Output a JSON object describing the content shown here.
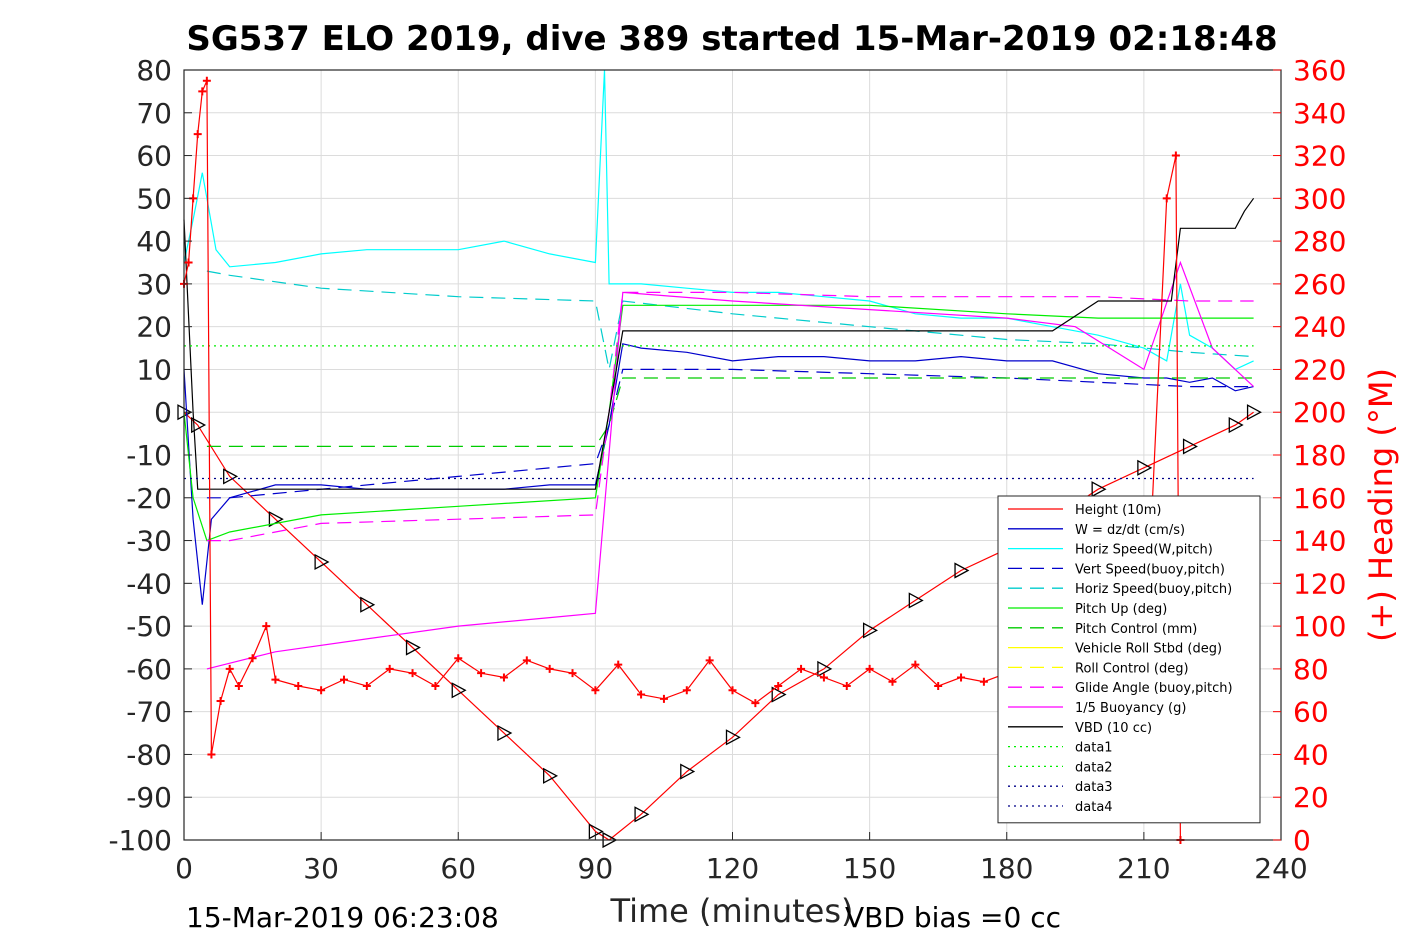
{
  "chart_data": {
    "type": "line",
    "title": "SG537 ELO 2019, dive 389 started 15-Mar-2019 02:18:48",
    "xlabel": "Time (minutes)",
    "ylabel_right": "(+) Heading (°M)",
    "xlim": [
      0,
      240
    ],
    "ylim": [
      -100,
      80
    ],
    "ylim_right": [
      0,
      360
    ],
    "xticks": [
      "0",
      "30",
      "60",
      "90",
      "120",
      "150",
      "180",
      "210",
      "240"
    ],
    "yticks_left": [
      "80",
      "70",
      "60",
      "50",
      "40",
      "30",
      "20",
      "10",
      "0",
      "-10",
      "-20",
      "-30",
      "-40",
      "-50",
      "-60",
      "-70",
      "-80",
      "-90",
      "-100"
    ],
    "yticks_right": [
      "360",
      "340",
      "320",
      "300",
      "280",
      "260",
      "240",
      "220",
      "200",
      "180",
      "160",
      "140",
      "120",
      "100",
      "80",
      "60",
      "40",
      "20",
      "0"
    ],
    "grid": true,
    "legend_position": "bottom-right",
    "footer_left": "15-Mar-2019 06:23:08",
    "footer_right": "VBD bias =0 cc",
    "colors": {
      "height": "#ff0000",
      "w": "#0000cc",
      "horiz_speed_w": "#00ffff",
      "vert_speed_buoy": "#0000cc",
      "horiz_speed_buoy": "#00cccc",
      "pitch_up": "#00ee00",
      "pitch_control": "#00cc00",
      "roll": "#ffff00",
      "roll_control": "#ffff00",
      "glide_angle": "#ff00ff",
      "buoyancy": "#ff00ff",
      "vbd": "#000000",
      "heading": "#ff0000"
    },
    "legend": [
      {
        "label": "Height (10m)",
        "color": "#ff0000",
        "style": "solid"
      },
      {
        "label": "W = dz/dt (cm/s)",
        "color": "#0000cc",
        "style": "solid"
      },
      {
        "label": "Horiz Speed(W,pitch)",
        "color": "#00ffff",
        "style": "solid"
      },
      {
        "label": "Vert Speed(buoy,pitch)",
        "color": "#0000cc",
        "style": "dashed"
      },
      {
        "label": "Horiz Speed(buoy,pitch)",
        "color": "#00cccc",
        "style": "dashed"
      },
      {
        "label": "Pitch Up (deg)",
        "color": "#00ee00",
        "style": "solid"
      },
      {
        "label": "Pitch Control (mm)",
        "color": "#00cc00",
        "style": "dashed"
      },
      {
        "label": "Vehicle Roll Stbd (deg)",
        "color": "#ffff00",
        "style": "solid"
      },
      {
        "label": "Roll Control (deg)",
        "color": "#ffff00",
        "style": "dashed"
      },
      {
        "label": "Glide Angle (buoy,pitch)",
        "color": "#ff00ff",
        "style": "dashed"
      },
      {
        "label": "1/5 Buoyancy (g)",
        "color": "#ff00ff",
        "style": "solid"
      },
      {
        "label": "VBD (10 cc)",
        "color": "#000000",
        "style": "solid"
      },
      {
        "label": "data1",
        "color": "#00ee00",
        "style": "dotted"
      },
      {
        "label": "data2",
        "color": "#00ee00",
        "style": "dotted"
      },
      {
        "label": "data3",
        "color": "#000088",
        "style": "dotted"
      },
      {
        "label": "data4",
        "color": "#000088",
        "style": "dotted"
      }
    ],
    "series": [
      {
        "name": "Height (10m)",
        "x": [
          0,
          3,
          10,
          20,
          30,
          40,
          50,
          60,
          70,
          80,
          90,
          93,
          100,
          110,
          120,
          130,
          140,
          150,
          160,
          170,
          180,
          190,
          200,
          210,
          220,
          230,
          234
        ],
        "y": [
          0,
          -3,
          -15,
          -25,
          -35,
          -45,
          -55,
          -65,
          -75,
          -85,
          -98,
          -100,
          -94,
          -84,
          -76,
          -66,
          -60,
          -51,
          -44,
          -37,
          -32,
          -25,
          -18,
          -13,
          -8,
          -3,
          0
        ]
      },
      {
        "name": "W = dz/dt (cm/s)",
        "x": [
          0,
          2,
          4,
          6,
          10,
          20,
          30,
          40,
          50,
          60,
          70,
          80,
          90,
          93,
          96,
          100,
          110,
          120,
          130,
          140,
          150,
          160,
          170,
          180,
          190,
          200,
          210,
          215,
          220,
          225,
          230,
          234
        ],
        "y": [
          10,
          -25,
          -45,
          -25,
          -20,
          -17,
          -17,
          -18,
          -18,
          -18,
          -18,
          -17,
          -17,
          -3,
          16,
          15,
          14,
          12,
          13,
          13,
          12,
          12,
          13,
          12,
          12,
          9,
          8,
          8,
          7,
          8,
          5,
          6
        ]
      },
      {
        "name": "Horiz Speed(W,pitch)",
        "x": [
          0,
          2,
          4,
          5,
          7,
          10,
          20,
          30,
          40,
          50,
          60,
          70,
          80,
          90,
          92,
          93,
          95,
          100,
          110,
          120,
          130,
          140,
          150,
          160,
          170,
          180,
          190,
          200,
          210,
          215,
          218,
          220,
          225,
          230,
          234
        ],
        "y": [
          35,
          45,
          56,
          50,
          38,
          34,
          35,
          37,
          38,
          38,
          38,
          40,
          37,
          35,
          80,
          30,
          30,
          30,
          29,
          28,
          28,
          27,
          26,
          23,
          22,
          22,
          20,
          18,
          15,
          12,
          30,
          18,
          15,
          10,
          12
        ]
      },
      {
        "name": "Vert Speed(buoy,pitch)",
        "x": [
          5,
          10,
          30,
          60,
          90,
          93,
          96,
          120,
          150,
          180,
          200,
          220,
          234
        ],
        "y": [
          -20,
          -20,
          -18,
          -15,
          -12,
          -3,
          10,
          10,
          9,
          8,
          7,
          6,
          6
        ]
      },
      {
        "name": "Horiz Speed(buoy,pitch)",
        "x": [
          5,
          10,
          30,
          60,
          90,
          93,
          96,
          120,
          150,
          180,
          200,
          220,
          234
        ],
        "y": [
          33,
          32,
          29,
          27,
          26,
          10,
          26,
          23,
          20,
          17,
          16,
          14,
          13
        ]
      },
      {
        "name": "Pitch Up (deg)",
        "x": [
          0,
          2,
          5,
          10,
          30,
          60,
          90,
          93,
          96,
          120,
          150,
          180,
          200,
          210,
          220,
          234
        ],
        "y": [
          0,
          -20,
          -30,
          -28,
          -24,
          -22,
          -20,
          0,
          25,
          25,
          25,
          23,
          22,
          22,
          22,
          22
        ]
      },
      {
        "name": "Pitch Control (mm)",
        "x": [
          5,
          90,
          93,
          96,
          200,
          234
        ],
        "y": [
          -8,
          -8,
          -3,
          8,
          8,
          8
        ]
      },
      {
        "name": "Glide Angle (buoy,pitch)",
        "x": [
          5,
          10,
          30,
          60,
          90,
          93,
          96,
          120,
          150,
          180,
          200,
          220,
          234
        ],
        "y": [
          -30,
          -30,
          -26,
          -25,
          -24,
          0,
          28,
          28,
          27,
          27,
          27,
          26,
          26
        ]
      },
      {
        "name": "1/5 Buoyancy (g)",
        "x": [
          5,
          20,
          40,
          60,
          80,
          90,
          96,
          120,
          150,
          180,
          195,
          210,
          218,
          225,
          234
        ],
        "y": [
          -60,
          -56,
          -53,
          -50,
          -48,
          -47,
          28,
          26,
          24,
          22,
          20,
          10,
          35,
          15,
          6
        ]
      },
      {
        "name": "VBD (10 cc)",
        "x": [
          0,
          2,
          3,
          90,
          93,
          96,
          100,
          190,
          200,
          210,
          216,
          218,
          225,
          230,
          232,
          234
        ],
        "y": [
          45,
          0,
          -18,
          -18,
          0,
          19,
          19,
          19,
          26,
          26,
          26,
          43,
          43,
          43,
          47,
          50
        ]
      },
      {
        "name": "data1",
        "x": [
          0,
          234
        ],
        "y": [
          15.5,
          15.5
        ]
      },
      {
        "name": "data3",
        "x": [
          0,
          234
        ],
        "y": [
          -15.5,
          -15.5
        ]
      },
      {
        "name": "Heading",
        "axis": "right",
        "x": [
          0,
          1,
          2,
          3,
          4,
          5,
          6,
          8,
          10,
          12,
          15,
          18,
          20,
          25,
          30,
          35,
          40,
          45,
          50,
          55,
          60,
          65,
          70,
          75,
          80,
          85,
          90,
          95,
          100,
          105,
          110,
          115,
          120,
          125,
          130,
          135,
          140,
          145,
          150,
          155,
          160,
          165,
          170,
          175,
          180,
          185,
          190,
          195,
          200,
          205,
          210,
          215,
          217,
          218
        ],
        "y": [
          260,
          270,
          300,
          330,
          350,
          355,
          40,
          65,
          80,
          72,
          85,
          100,
          75,
          72,
          70,
          75,
          72,
          80,
          78,
          72,
          85,
          78,
          76,
          84,
          80,
          78,
          70,
          82,
          68,
          66,
          70,
          84,
          70,
          64,
          72,
          80,
          76,
          72,
          80,
          74,
          82,
          72,
          76,
          74,
          78,
          70,
          74,
          72,
          76,
          72,
          74,
          300,
          320,
          0
        ]
      }
    ]
  }
}
